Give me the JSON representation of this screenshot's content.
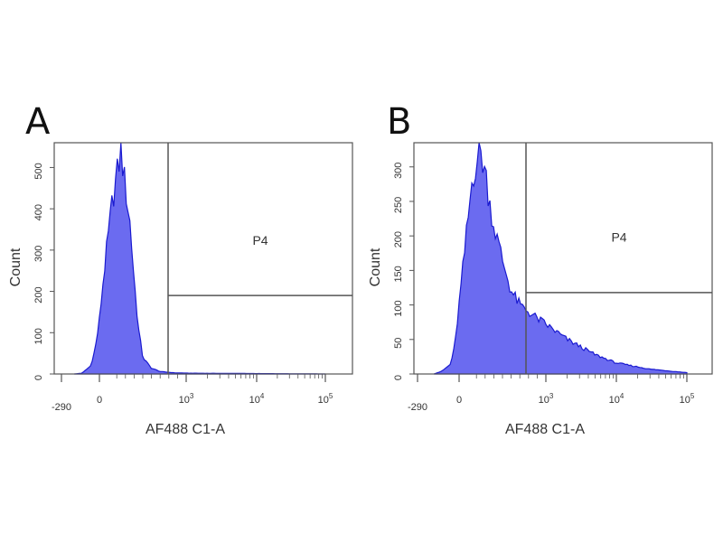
{
  "chart_data": [
    {
      "type": "area",
      "panel_label": "A",
      "xlabel": "AF488 C1-A",
      "ylabel": "Count",
      "x_scale": "biexponential",
      "x_ticks": [
        "-290",
        "0",
        "10^3",
        "10^4",
        "10^5"
      ],
      "y_ticks": [
        0,
        100,
        200,
        300,
        400,
        500
      ],
      "ylim": [
        0,
        560
      ],
      "fill_color": "#6b6bf0",
      "line_color": "#1a1ad0",
      "gate": {
        "name": "P4",
        "y_marker": 190
      },
      "histogram": {
        "x": [
          "-290",
          "-200",
          "-100",
          "-50",
          "0",
          "50",
          "100",
          "150",
          "200",
          "250",
          "300",
          "350",
          "400",
          "450",
          "500",
          "600",
          "700",
          "850",
          "10^3",
          "10^4",
          "10^5"
        ],
        "counts": [
          0,
          2,
          20,
          60,
          130,
          240,
          330,
          420,
          480,
          540,
          450,
          370,
          230,
          110,
          40,
          14,
          6,
          3,
          2,
          1,
          0
        ]
      }
    },
    {
      "type": "area",
      "panel_label": "B",
      "xlabel": "AF488 C1-A",
      "ylabel": "Count",
      "x_scale": "biexponential",
      "x_ticks": [
        "-290",
        "0",
        "10^3",
        "10^4",
        "10^5"
      ],
      "y_ticks": [
        0,
        50,
        100,
        150,
        200,
        250,
        300
      ],
      "ylim": [
        0,
        335
      ],
      "fill_color": "#6b6bf0",
      "line_color": "#1a1ad0",
      "gate": {
        "name": "P4",
        "y_marker": 118
      },
      "histogram": {
        "x": [
          "-290",
          "-200",
          "-100",
          "-50",
          "0",
          "50",
          "100",
          "150",
          "200",
          "250",
          "300",
          "350",
          "400",
          "500",
          "600",
          "700",
          "850",
          "10^3",
          "2000",
          "5000",
          "10^4",
          "3x10^4",
          "10^5"
        ],
        "counts": [
          0,
          4,
          14,
          40,
          100,
          160,
          220,
          280,
          310,
          320,
          295,
          250,
          215,
          165,
          120,
          100,
          85,
          72,
          50,
          28,
          16,
          7,
          2
        ]
      }
    }
  ]
}
